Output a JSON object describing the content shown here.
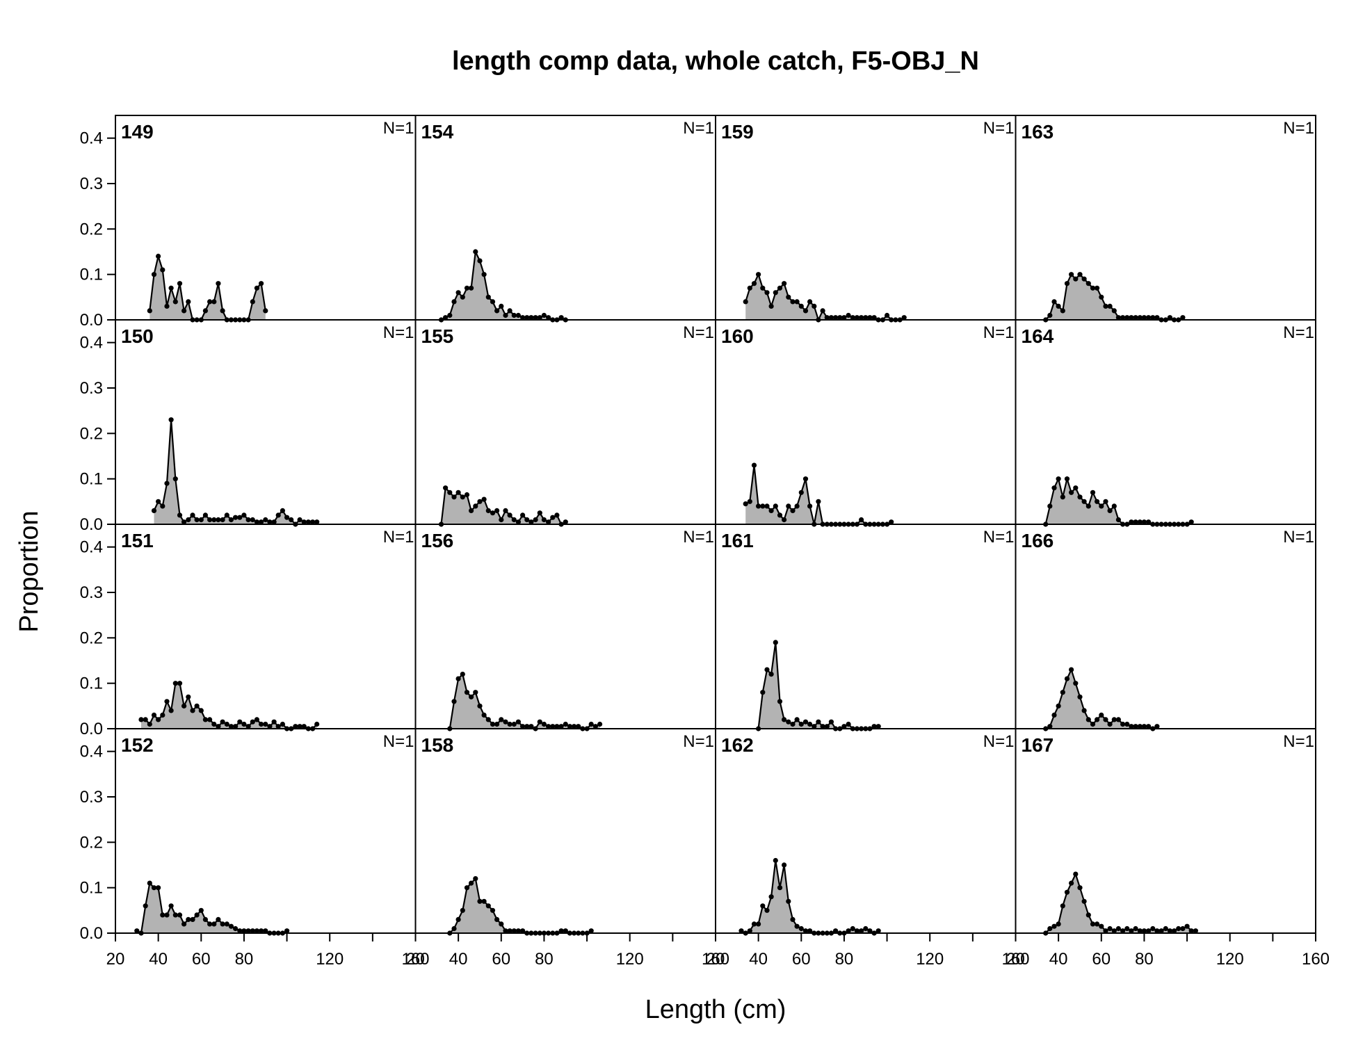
{
  "chart_data": {
    "type": "area",
    "title": "length comp data, whole catch, F5-OBJ_N",
    "xlabel": "Length (cm)",
    "ylabel": "Proportion",
    "xlim": [
      20,
      160
    ],
    "ylim": [
      0,
      0.45
    ],
    "xticks_major": [
      20,
      40,
      60,
      80,
      120,
      160
    ],
    "xticks_minor": [
      100,
      140
    ],
    "yticks": [
      0.0,
      0.1,
      0.2,
      0.3,
      0.4
    ],
    "ytick_labels": [
      "0.0",
      "0.1",
      "0.2",
      "0.3",
      "0.4"
    ],
    "grid": false,
    "fill_color": "#b3b3b3",
    "line_color": "#000000",
    "panels": [
      {
        "label": "149",
        "n_label": "N=1",
        "x": [
          36,
          38,
          40,
          42,
          44,
          46,
          48,
          50,
          52,
          54,
          56,
          58,
          60,
          62,
          64,
          66,
          68,
          70,
          72,
          74,
          76,
          78,
          80,
          82,
          84,
          86,
          88,
          90
        ],
        "y": [
          0.02,
          0.1,
          0.14,
          0.11,
          0.03,
          0.07,
          0.04,
          0.08,
          0.02,
          0.04,
          0.0,
          0.0,
          0.0,
          0.02,
          0.04,
          0.04,
          0.08,
          0.02,
          0.0,
          0.0,
          0.0,
          0.0,
          0.0,
          0.0,
          0.04,
          0.07,
          0.08,
          0.02
        ]
      },
      {
        "label": "154",
        "n_label": "N=1",
        "x": [
          32,
          34,
          36,
          38,
          40,
          42,
          44,
          46,
          48,
          50,
          52,
          54,
          56,
          58,
          60,
          62,
          64,
          66,
          68,
          70,
          72,
          74,
          76,
          78,
          80,
          82,
          84,
          86,
          88,
          90
        ],
        "y": [
          0.0,
          0.005,
          0.01,
          0.04,
          0.06,
          0.05,
          0.07,
          0.07,
          0.15,
          0.13,
          0.1,
          0.05,
          0.04,
          0.02,
          0.03,
          0.01,
          0.02,
          0.01,
          0.01,
          0.005,
          0.005,
          0.005,
          0.005,
          0.005,
          0.01,
          0.005,
          0.0,
          0.0,
          0.005,
          0.0
        ]
      },
      {
        "label": "159",
        "n_label": "N=1",
        "x": [
          34,
          36,
          38,
          40,
          42,
          44,
          46,
          48,
          50,
          52,
          54,
          56,
          58,
          60,
          62,
          64,
          66,
          68,
          70,
          72,
          74,
          76,
          78,
          80,
          82,
          84,
          86,
          88,
          90,
          92,
          94,
          96,
          98,
          100,
          102,
          104,
          106,
          108
        ],
        "y": [
          0.04,
          0.07,
          0.08,
          0.1,
          0.07,
          0.06,
          0.03,
          0.06,
          0.07,
          0.08,
          0.05,
          0.04,
          0.04,
          0.03,
          0.02,
          0.04,
          0.03,
          0.0,
          0.02,
          0.005,
          0.005,
          0.005,
          0.005,
          0.005,
          0.01,
          0.005,
          0.005,
          0.005,
          0.005,
          0.005,
          0.005,
          0.0,
          0.0,
          0.01,
          0.0,
          0.0,
          0.0,
          0.005
        ]
      },
      {
        "label": "163",
        "n_label": "N=1",
        "x": [
          34,
          36,
          38,
          40,
          42,
          44,
          46,
          48,
          50,
          52,
          54,
          56,
          58,
          60,
          62,
          64,
          66,
          68,
          70,
          72,
          74,
          76,
          78,
          80,
          82,
          84,
          86,
          88,
          90,
          92,
          94,
          96,
          98
        ],
        "y": [
          0.0,
          0.01,
          0.04,
          0.03,
          0.02,
          0.08,
          0.1,
          0.09,
          0.1,
          0.09,
          0.08,
          0.07,
          0.07,
          0.05,
          0.03,
          0.03,
          0.02,
          0.005,
          0.005,
          0.005,
          0.005,
          0.005,
          0.005,
          0.005,
          0.005,
          0.005,
          0.005,
          0.0,
          0.0,
          0.005,
          0.0,
          0.0,
          0.005
        ]
      },
      {
        "label": "150",
        "n_label": "N=1",
        "x": [
          38,
          40,
          42,
          44,
          46,
          48,
          50,
          52,
          54,
          56,
          58,
          60,
          62,
          64,
          66,
          68,
          70,
          72,
          74,
          76,
          78,
          80,
          82,
          84,
          86,
          88,
          90,
          92,
          94,
          96,
          98,
          100,
          102,
          104,
          106,
          108,
          110,
          112,
          114
        ],
        "y": [
          0.03,
          0.05,
          0.04,
          0.09,
          0.23,
          0.1,
          0.02,
          0.005,
          0.01,
          0.02,
          0.01,
          0.01,
          0.02,
          0.01,
          0.01,
          0.01,
          0.01,
          0.02,
          0.01,
          0.015,
          0.015,
          0.02,
          0.01,
          0.01,
          0.005,
          0.005,
          0.01,
          0.005,
          0.005,
          0.02,
          0.03,
          0.015,
          0.01,
          0.0,
          0.01,
          0.005,
          0.005,
          0.005,
          0.005
        ]
      },
      {
        "label": "155",
        "n_label": "N=1",
        "x": [
          32,
          34,
          36,
          38,
          40,
          42,
          44,
          46,
          48,
          50,
          52,
          54,
          56,
          58,
          60,
          62,
          64,
          66,
          68,
          70,
          72,
          74,
          76,
          78,
          80,
          82,
          84,
          86,
          88,
          90
        ],
        "y": [
          0.0,
          0.08,
          0.07,
          0.06,
          0.07,
          0.06,
          0.065,
          0.03,
          0.04,
          0.05,
          0.055,
          0.03,
          0.025,
          0.03,
          0.01,
          0.03,
          0.02,
          0.01,
          0.005,
          0.02,
          0.01,
          0.005,
          0.01,
          0.025,
          0.01,
          0.005,
          0.015,
          0.02,
          0.0,
          0.005
        ]
      },
      {
        "label": "160",
        "n_label": "N=1",
        "x": [
          34,
          36,
          38,
          40,
          42,
          44,
          46,
          48,
          50,
          52,
          54,
          56,
          58,
          60,
          62,
          64,
          66,
          68,
          70,
          72,
          74,
          76,
          78,
          80,
          82,
          84,
          86,
          88,
          90,
          92,
          94,
          96,
          98,
          100,
          102
        ],
        "y": [
          0.045,
          0.05,
          0.13,
          0.04,
          0.04,
          0.04,
          0.03,
          0.04,
          0.02,
          0.01,
          0.04,
          0.03,
          0.04,
          0.07,
          0.1,
          0.04,
          0.0,
          0.05,
          0.0,
          0.0,
          0.0,
          0.0,
          0.0,
          0.0,
          0.0,
          0.0,
          0.0,
          0.01,
          0.0,
          0.0,
          0.0,
          0.0,
          0.0,
          0.0,
          0.005
        ]
      },
      {
        "label": "164",
        "n_label": "N=1",
        "x": [
          34,
          36,
          38,
          40,
          42,
          44,
          46,
          48,
          50,
          52,
          54,
          56,
          58,
          60,
          62,
          64,
          66,
          68,
          70,
          72,
          74,
          76,
          78,
          80,
          82,
          84,
          86,
          88,
          90,
          92,
          94,
          96,
          98,
          100,
          102
        ],
        "y": [
          0.0,
          0.04,
          0.08,
          0.1,
          0.06,
          0.1,
          0.07,
          0.08,
          0.06,
          0.05,
          0.04,
          0.07,
          0.05,
          0.04,
          0.05,
          0.03,
          0.04,
          0.01,
          0.0,
          0.0,
          0.005,
          0.005,
          0.005,
          0.005,
          0.005,
          0.0,
          0.0,
          0.0,
          0.0,
          0.0,
          0.0,
          0.0,
          0.0,
          0.0,
          0.005
        ]
      },
      {
        "label": "151",
        "n_label": "N=1",
        "x": [
          32,
          34,
          36,
          38,
          40,
          42,
          44,
          46,
          48,
          50,
          52,
          54,
          56,
          58,
          60,
          62,
          64,
          66,
          68,
          70,
          72,
          74,
          76,
          78,
          80,
          82,
          84,
          86,
          88,
          90,
          92,
          94,
          96,
          98,
          100,
          102,
          104,
          106,
          108,
          110,
          112,
          114
        ],
        "y": [
          0.02,
          0.02,
          0.01,
          0.03,
          0.02,
          0.03,
          0.06,
          0.04,
          0.1,
          0.1,
          0.05,
          0.07,
          0.04,
          0.05,
          0.04,
          0.02,
          0.02,
          0.01,
          0.005,
          0.015,
          0.01,
          0.005,
          0.005,
          0.015,
          0.01,
          0.005,
          0.015,
          0.02,
          0.01,
          0.01,
          0.005,
          0.015,
          0.005,
          0.01,
          0.0,
          0.0,
          0.005,
          0.005,
          0.005,
          0.0,
          0.0,
          0.01
        ]
      },
      {
        "label": "156",
        "n_label": "N=1",
        "x": [
          36,
          38,
          40,
          42,
          44,
          46,
          48,
          50,
          52,
          54,
          56,
          58,
          60,
          62,
          64,
          66,
          68,
          70,
          72,
          74,
          76,
          78,
          80,
          82,
          84,
          86,
          88,
          90,
          92,
          94,
          96,
          98,
          100,
          102,
          104,
          106
        ],
        "y": [
          0.0,
          0.06,
          0.11,
          0.12,
          0.08,
          0.07,
          0.08,
          0.05,
          0.03,
          0.02,
          0.01,
          0.01,
          0.02,
          0.015,
          0.01,
          0.01,
          0.015,
          0.005,
          0.005,
          0.005,
          0.0,
          0.015,
          0.01,
          0.005,
          0.005,
          0.005,
          0.005,
          0.01,
          0.005,
          0.005,
          0.005,
          0.0,
          0.0,
          0.01,
          0.005,
          0.01
        ]
      },
      {
        "label": "161",
        "n_label": "N=1",
        "x": [
          40,
          42,
          44,
          46,
          48,
          50,
          52,
          54,
          56,
          58,
          60,
          62,
          64,
          66,
          68,
          70,
          72,
          74,
          76,
          78,
          80,
          82,
          84,
          86,
          88,
          90,
          92,
          94,
          96
        ],
        "y": [
          0.0,
          0.08,
          0.13,
          0.12,
          0.19,
          0.06,
          0.02,
          0.015,
          0.01,
          0.02,
          0.01,
          0.015,
          0.01,
          0.005,
          0.015,
          0.005,
          0.005,
          0.015,
          0.0,
          0.0,
          0.005,
          0.01,
          0.0,
          0.0,
          0.0,
          0.0,
          0.0,
          0.005,
          0.005
        ]
      },
      {
        "label": "166",
        "n_label": "N=1",
        "x": [
          34,
          36,
          38,
          40,
          42,
          44,
          46,
          48,
          50,
          52,
          54,
          56,
          58,
          60,
          62,
          64,
          66,
          68,
          70,
          72,
          74,
          76,
          78,
          80,
          82,
          84,
          86
        ],
        "y": [
          0.0,
          0.005,
          0.03,
          0.05,
          0.08,
          0.11,
          0.13,
          0.1,
          0.07,
          0.04,
          0.02,
          0.01,
          0.02,
          0.03,
          0.02,
          0.01,
          0.02,
          0.02,
          0.01,
          0.01,
          0.005,
          0.005,
          0.005,
          0.005,
          0.005,
          0.0,
          0.005
        ]
      },
      {
        "label": "152",
        "n_label": "N=1",
        "x": [
          30,
          32,
          34,
          36,
          38,
          40,
          42,
          44,
          46,
          48,
          50,
          52,
          54,
          56,
          58,
          60,
          62,
          64,
          66,
          68,
          70,
          72,
          74,
          76,
          78,
          80,
          82,
          84,
          86,
          88,
          90,
          92,
          94,
          96,
          98,
          100
        ],
        "y": [
          0.005,
          0.0,
          0.06,
          0.11,
          0.1,
          0.1,
          0.04,
          0.04,
          0.06,
          0.04,
          0.04,
          0.02,
          0.03,
          0.03,
          0.04,
          0.05,
          0.03,
          0.02,
          0.02,
          0.03,
          0.02,
          0.02,
          0.015,
          0.01,
          0.005,
          0.005,
          0.005,
          0.005,
          0.005,
          0.005,
          0.005,
          0.0,
          0.0,
          0.0,
          0.0,
          0.005
        ]
      },
      {
        "label": "158",
        "n_label": "N=1",
        "x": [
          36,
          38,
          40,
          42,
          44,
          46,
          48,
          50,
          52,
          54,
          56,
          58,
          60,
          62,
          64,
          66,
          68,
          70,
          72,
          74,
          76,
          78,
          80,
          82,
          84,
          86,
          88,
          90,
          92,
          94,
          96,
          98,
          100,
          102
        ],
        "y": [
          0.0,
          0.01,
          0.03,
          0.05,
          0.1,
          0.11,
          0.12,
          0.07,
          0.07,
          0.06,
          0.05,
          0.03,
          0.02,
          0.005,
          0.005,
          0.005,
          0.005,
          0.005,
          0.0,
          0.0,
          0.0,
          0.0,
          0.0,
          0.0,
          0.0,
          0.0,
          0.005,
          0.005,
          0.0,
          0.0,
          0.0,
          0.0,
          0.0,
          0.005
        ]
      },
      {
        "label": "162",
        "n_label": "N=1",
        "x": [
          32,
          34,
          36,
          38,
          40,
          42,
          44,
          46,
          48,
          50,
          52,
          54,
          56,
          58,
          60,
          62,
          64,
          66,
          68,
          70,
          72,
          74,
          76,
          78,
          80,
          82,
          84,
          86,
          88,
          90,
          92,
          94,
          96
        ],
        "y": [
          0.005,
          0.0,
          0.005,
          0.02,
          0.02,
          0.06,
          0.05,
          0.08,
          0.16,
          0.1,
          0.15,
          0.07,
          0.03,
          0.015,
          0.01,
          0.005,
          0.005,
          0.0,
          0.0,
          0.0,
          0.0,
          0.0,
          0.005,
          0.0,
          0.0,
          0.005,
          0.01,
          0.005,
          0.005,
          0.01,
          0.005,
          0.0,
          0.005
        ]
      },
      {
        "label": "167",
        "n_label": "N=1",
        "x": [
          34,
          36,
          38,
          40,
          42,
          44,
          46,
          48,
          50,
          52,
          54,
          56,
          58,
          60,
          62,
          64,
          66,
          68,
          70,
          72,
          74,
          76,
          78,
          80,
          82,
          84,
          86,
          88,
          90,
          92,
          94,
          96,
          98,
          100,
          102,
          104
        ],
        "y": [
          0.0,
          0.01,
          0.015,
          0.02,
          0.06,
          0.09,
          0.11,
          0.13,
          0.1,
          0.07,
          0.04,
          0.02,
          0.02,
          0.015,
          0.005,
          0.01,
          0.005,
          0.01,
          0.005,
          0.01,
          0.005,
          0.01,
          0.005,
          0.005,
          0.005,
          0.01,
          0.005,
          0.005,
          0.01,
          0.005,
          0.005,
          0.01,
          0.01,
          0.015,
          0.005,
          0.005
        ]
      }
    ]
  }
}
